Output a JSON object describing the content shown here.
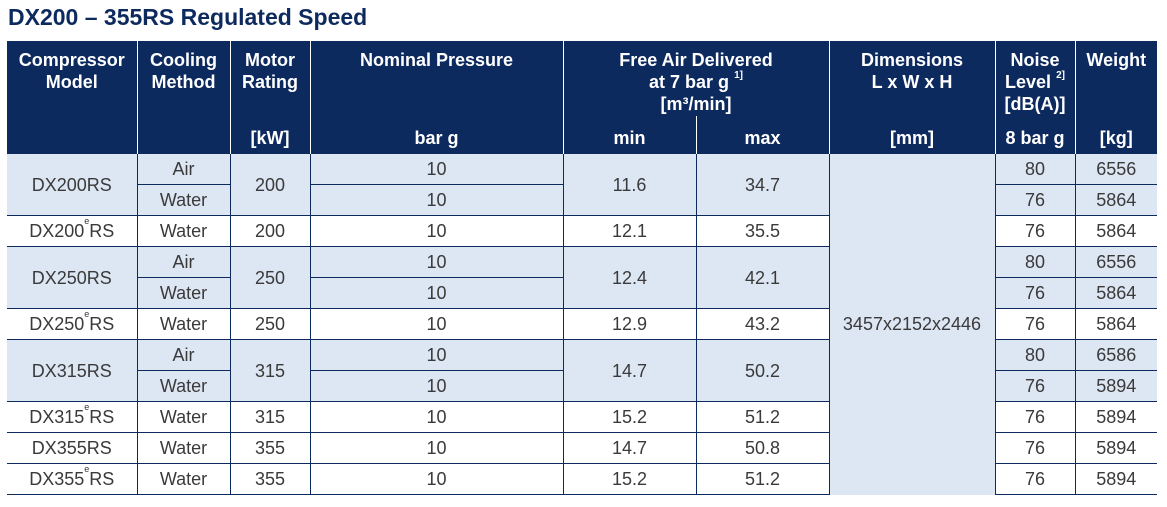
{
  "title": "DX200 – 355RS Regulated Speed",
  "header": {
    "model": "Compressor Model",
    "model_l1": "Compressor",
    "model_l2": "Model",
    "cooling_l1": "Cooling",
    "cooling_l2": "Method",
    "motor_l1": "Motor",
    "motor_l2": "Rating",
    "motor_unit": "[kW]",
    "pressure": "Nominal Pressure",
    "pressure_unit": "bar g",
    "fad_l1": "Free Air Delivered",
    "fad_l2": "at 7 bar g",
    "fad_note": "1]",
    "fad_l3": "[m³/min]",
    "fad_min": "min",
    "fad_max": "max",
    "dim_l1": "Dimensions",
    "dim_l2": "L x W x H",
    "dim_unit": "[mm]",
    "noise_l1": "Noise",
    "noise_l2": "Level",
    "noise_note": "2]",
    "noise_l3": "[dB(A)]",
    "noise_unit": "8 bar g",
    "weight": "Weight",
    "weight_unit": "[kg]"
  },
  "dimensions": "3457x2152x2446",
  "groups": [
    {
      "model_base": "DX200",
      "model_sup": "",
      "model_suffix": "RS",
      "motor": "200",
      "fad_min": "11.6",
      "fad_max": "34.7",
      "rows": [
        {
          "cooling": "Air",
          "pressure": "10",
          "noise": "80",
          "weight": "6556"
        },
        {
          "cooling": "Water",
          "pressure": "10",
          "noise": "76",
          "weight": "5864"
        }
      ]
    },
    {
      "model_base": "DX200",
      "model_sup": "e",
      "model_suffix": "RS",
      "motor": "200",
      "fad_min": "12.1",
      "fad_max": "35.5",
      "rows": [
        {
          "cooling": "Water",
          "pressure": "10",
          "noise": "76",
          "weight": "5864"
        }
      ]
    },
    {
      "model_base": "DX250",
      "model_sup": "",
      "model_suffix": "RS",
      "motor": "250",
      "fad_min": "12.4",
      "fad_max": "42.1",
      "rows": [
        {
          "cooling": "Air",
          "pressure": "10",
          "noise": "80",
          "weight": "6556"
        },
        {
          "cooling": "Water",
          "pressure": "10",
          "noise": "76",
          "weight": "5864"
        }
      ]
    },
    {
      "model_base": "DX250",
      "model_sup": "e",
      "model_suffix": "RS",
      "motor": "250",
      "fad_min": "12.9",
      "fad_max": "43.2",
      "rows": [
        {
          "cooling": "Water",
          "pressure": "10",
          "noise": "76",
          "weight": "5864"
        }
      ]
    },
    {
      "model_base": "DX315",
      "model_sup": "",
      "model_suffix": "RS",
      "motor": "315",
      "fad_min": "14.7",
      "fad_max": "50.2",
      "rows": [
        {
          "cooling": "Air",
          "pressure": "10",
          "noise": "80",
          "weight": "6586"
        },
        {
          "cooling": "Water",
          "pressure": "10",
          "noise": "76",
          "weight": "5894"
        }
      ]
    },
    {
      "model_base": "DX315",
      "model_sup": "e",
      "model_suffix": "RS",
      "motor": "315",
      "fad_min": "15.2",
      "fad_max": "51.2",
      "rows": [
        {
          "cooling": "Water",
          "pressure": "10",
          "noise": "76",
          "weight": "5894"
        }
      ]
    },
    {
      "model_base": "DX355",
      "model_sup": "",
      "model_suffix": "RS",
      "motor": "355",
      "fad_min": "14.7",
      "fad_max": "50.8",
      "rows": [
        {
          "cooling": "Water",
          "pressure": "10",
          "noise": "76",
          "weight": "5894"
        }
      ]
    },
    {
      "model_base": "DX355",
      "model_sup": "e",
      "model_suffix": "RS",
      "motor": "355",
      "fad_min": "15.2",
      "fad_max": "51.2",
      "rows": [
        {
          "cooling": "Water",
          "pressure": "10",
          "noise": "76",
          "weight": "5894"
        }
      ]
    }
  ]
}
